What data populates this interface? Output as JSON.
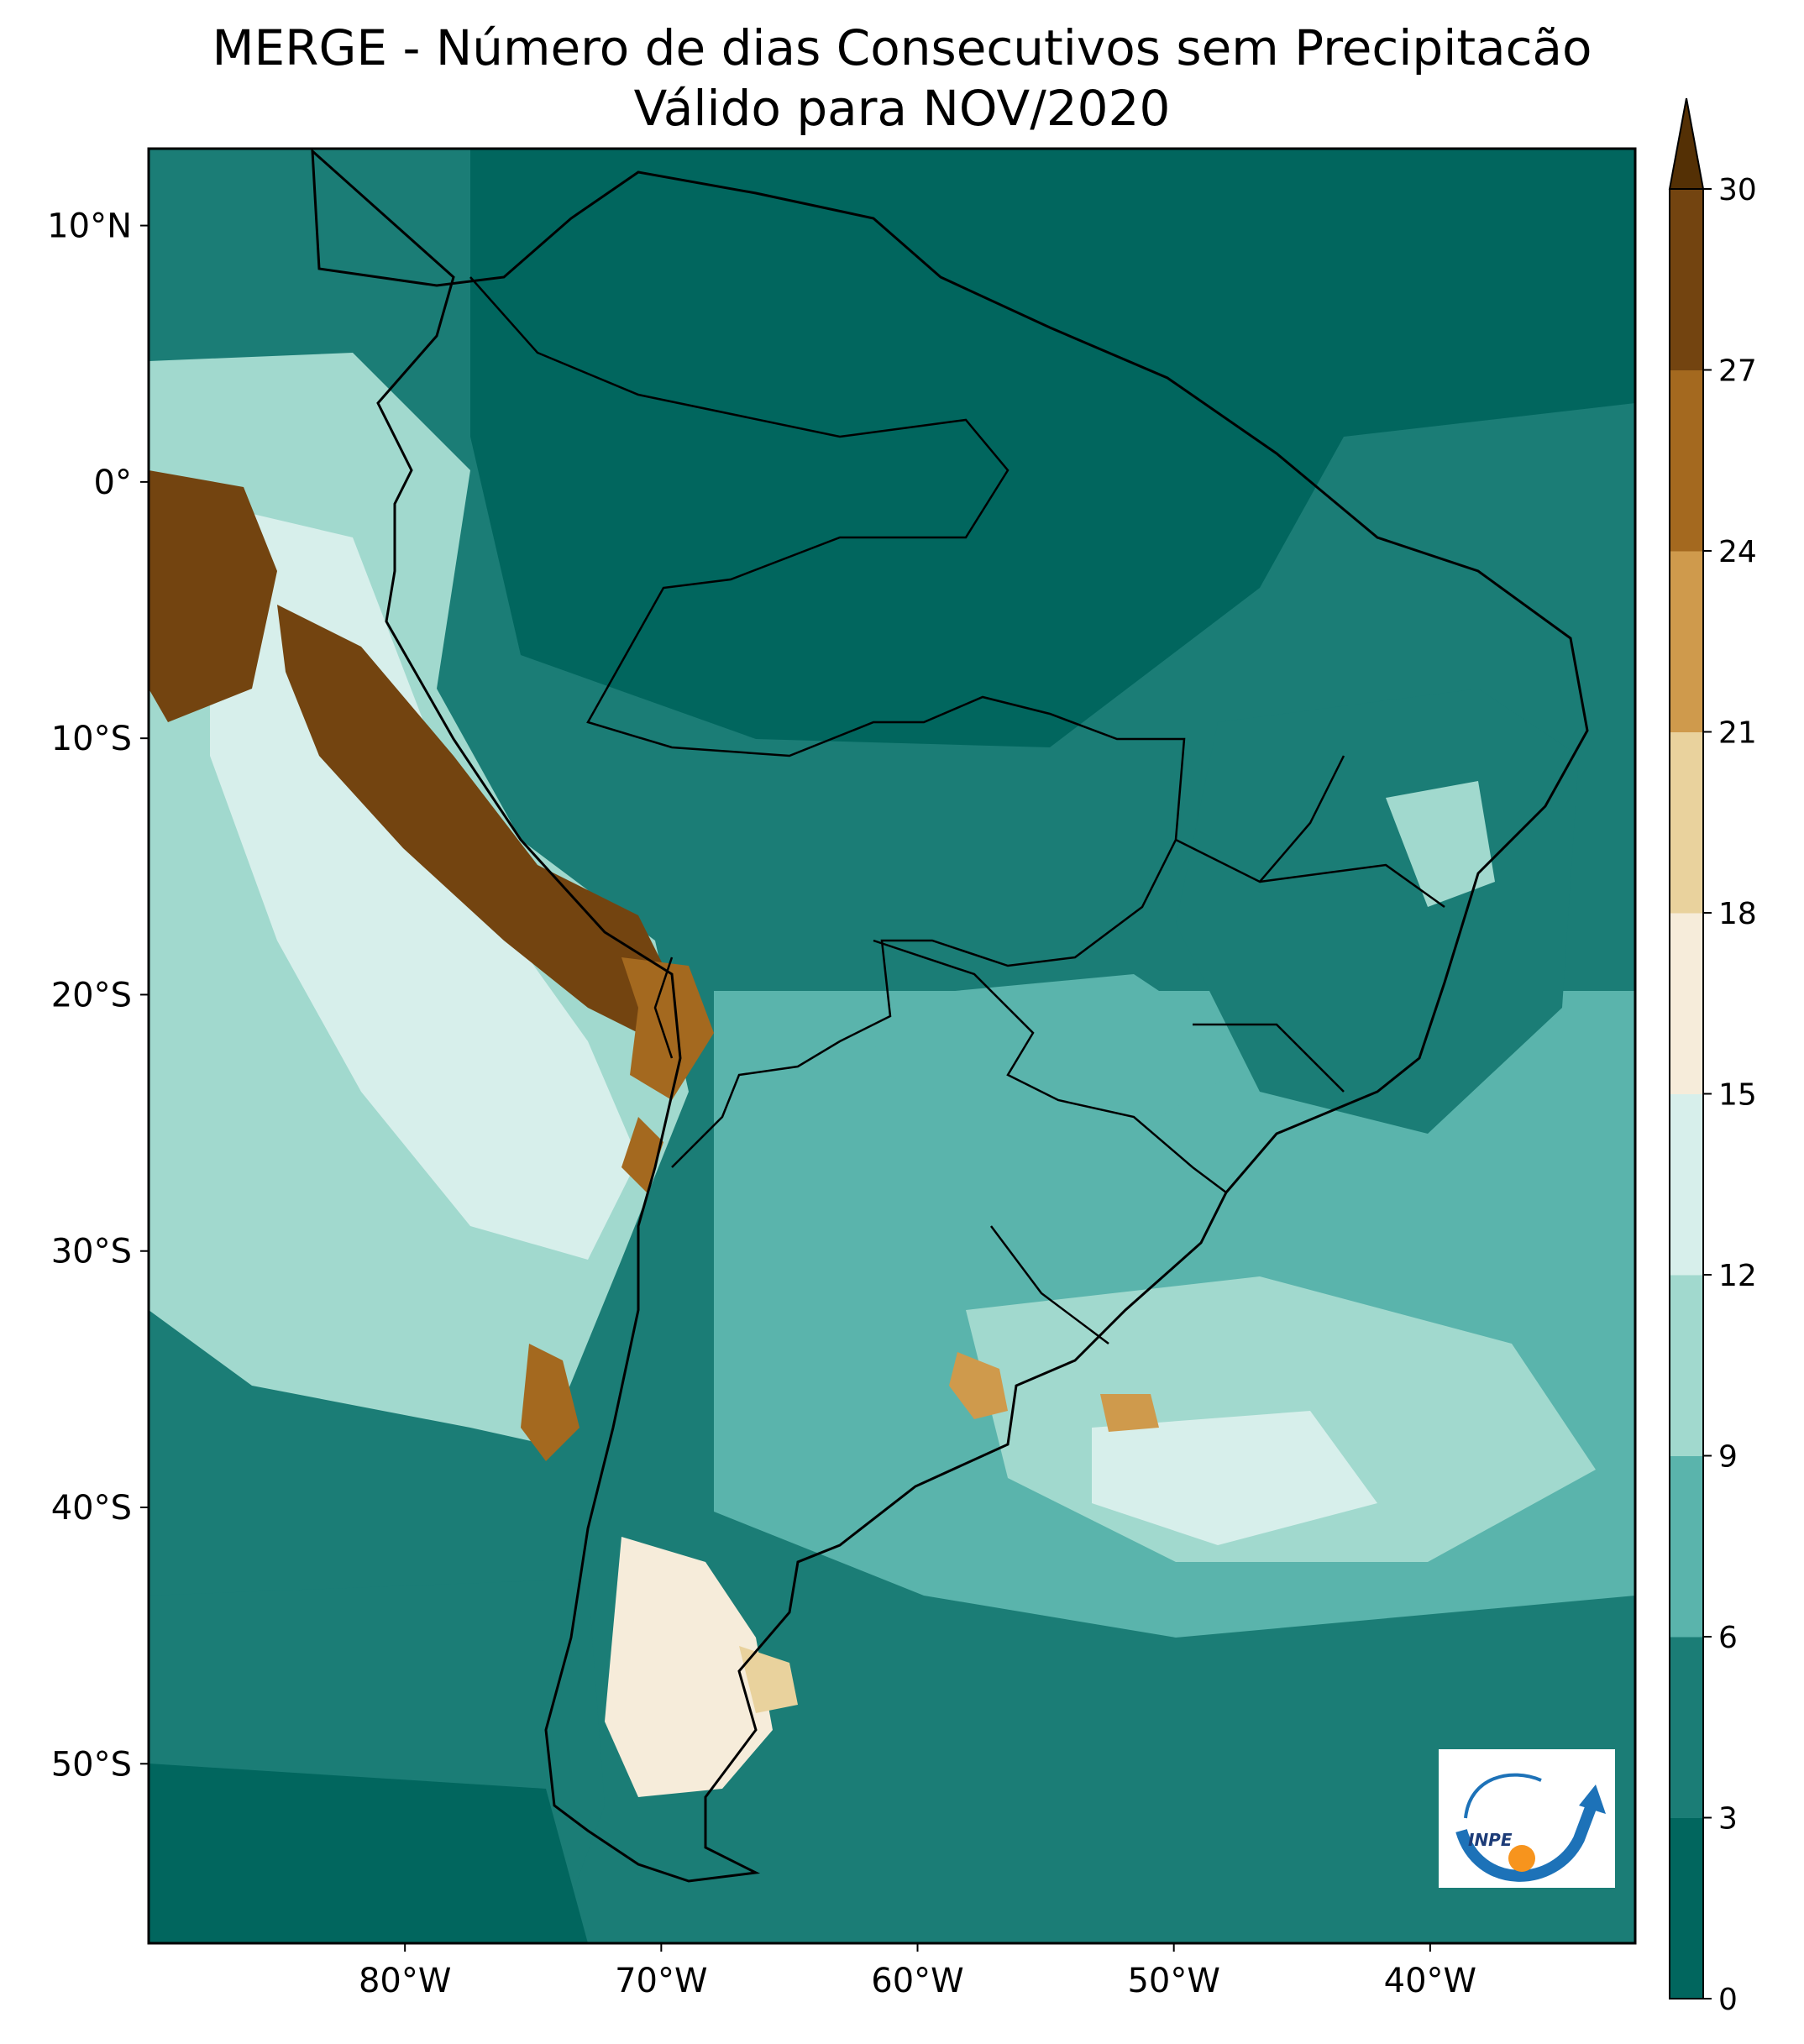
{
  "title_line1": "MERGE - Número de dias Consecutivos sem Precipitacão",
  "title_line2": "Válido para NOV/2020",
  "lat_ticks": [
    {
      "value": 10,
      "label": "10°N"
    },
    {
      "value": 0,
      "label": "0°"
    },
    {
      "value": -10,
      "label": "10°S"
    },
    {
      "value": -20,
      "label": "20°S"
    },
    {
      "value": -30,
      "label": "30°S"
    },
    {
      "value": -40,
      "label": "40°S"
    },
    {
      "value": -50,
      "label": "50°S"
    }
  ],
  "lon_ticks": [
    {
      "value": -80,
      "label": "80°W"
    },
    {
      "value": -70,
      "label": "70°W"
    },
    {
      "value": -60,
      "label": "60°W"
    },
    {
      "value": -50,
      "label": "50°W"
    },
    {
      "value": -40,
      "label": "40°W"
    }
  ],
  "extent": {
    "lon_min": -90,
    "lon_max": -32,
    "lat_min": -57,
    "lat_max": 13
  },
  "colorbar": {
    "levels": [
      0,
      3,
      6,
      9,
      12,
      15,
      18,
      21,
      24,
      27,
      30
    ],
    "labels": [
      "0",
      "3",
      "6",
      "9",
      "12",
      "15",
      "18",
      "21",
      "24",
      "27",
      "30"
    ],
    "colors": [
      "#01665e",
      "#1b7d76",
      "#5ab4ac",
      "#a1d9ce",
      "#d7efeb",
      "#f6ecda",
      "#e9d29d",
      "#cf9a4c",
      "#a4691f",
      "#734410"
    ],
    "extend_color": "#543005"
  },
  "logo": {
    "text": "INPE"
  }
}
